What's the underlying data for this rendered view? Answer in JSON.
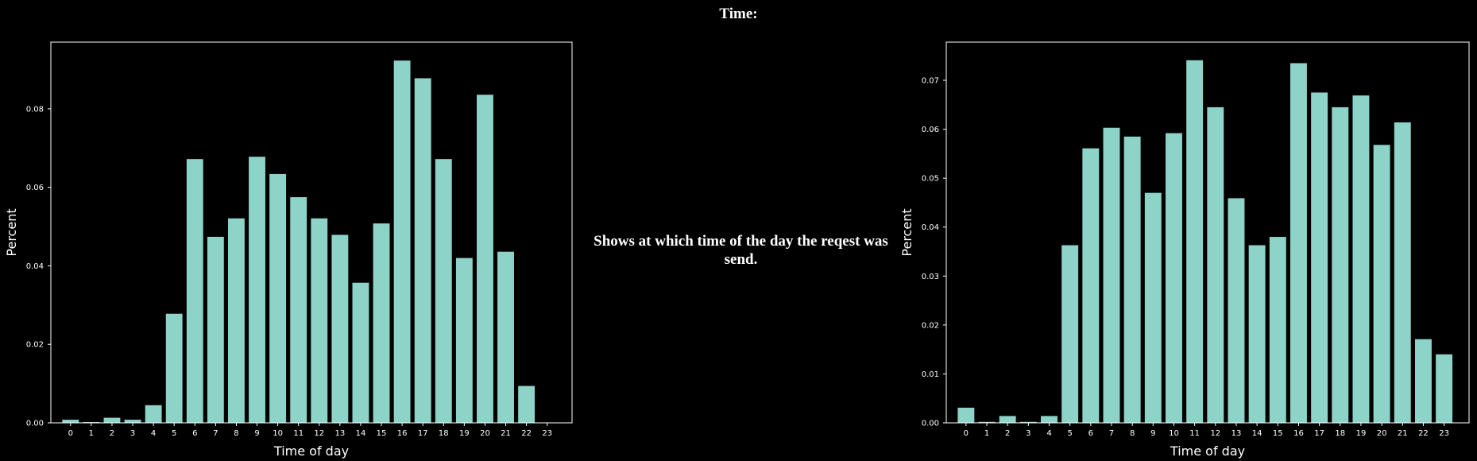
{
  "page": {
    "title": "Time:",
    "description": "Shows at which time of the day the reqest was send."
  },
  "colors": {
    "background": "#000000",
    "bar": "#8dd3c7",
    "axes": "#ffffff",
    "text": "#ffffff"
  },
  "chart_data": [
    {
      "type": "bar",
      "title": "",
      "xlabel": "Time of day",
      "ylabel": "Percent",
      "categories": [
        "0",
        "1",
        "2",
        "3",
        "4",
        "5",
        "6",
        "7",
        "8",
        "9",
        "10",
        "11",
        "12",
        "13",
        "14",
        "15",
        "16",
        "17",
        "18",
        "19",
        "20",
        "21",
        "22",
        "23"
      ],
      "values": [
        0.0008,
        0.0002,
        0.0013,
        0.0008,
        0.0045,
        0.0278,
        0.0672,
        0.0474,
        0.0521,
        0.0678,
        0.0634,
        0.0575,
        0.0521,
        0.0479,
        0.0357,
        0.0508,
        0.0923,
        0.0878,
        0.0672,
        0.042,
        0.0836,
        0.0436,
        0.0094,
        0.0
      ],
      "ylim": [
        0,
        0.097
      ],
      "yticks": [
        "0.00",
        "0.02",
        "0.04",
        "0.06",
        "0.08"
      ],
      "grid": false
    },
    {
      "type": "bar",
      "title": "",
      "xlabel": "Time of day",
      "ylabel": "Percent",
      "categories": [
        "0",
        "1",
        "2",
        "3",
        "4",
        "5",
        "6",
        "7",
        "8",
        "9",
        "10",
        "11",
        "12",
        "13",
        "14",
        "15",
        "16",
        "17",
        "18",
        "19",
        "20",
        "21",
        "22",
        "23"
      ],
      "values": [
        0.0031,
        0.0002,
        0.0014,
        0.0002,
        0.0014,
        0.0363,
        0.0561,
        0.0603,
        0.0585,
        0.047,
        0.0592,
        0.0741,
        0.0645,
        0.0459,
        0.0363,
        0.038,
        0.0735,
        0.0675,
        0.0645,
        0.0669,
        0.0568,
        0.0614,
        0.0171,
        0.014
      ],
      "ylim": [
        0,
        0.0778
      ],
      "yticks": [
        "0.00",
        "0.01",
        "0.02",
        "0.03",
        "0.04",
        "0.05",
        "0.06",
        "0.07"
      ],
      "grid": false
    }
  ]
}
